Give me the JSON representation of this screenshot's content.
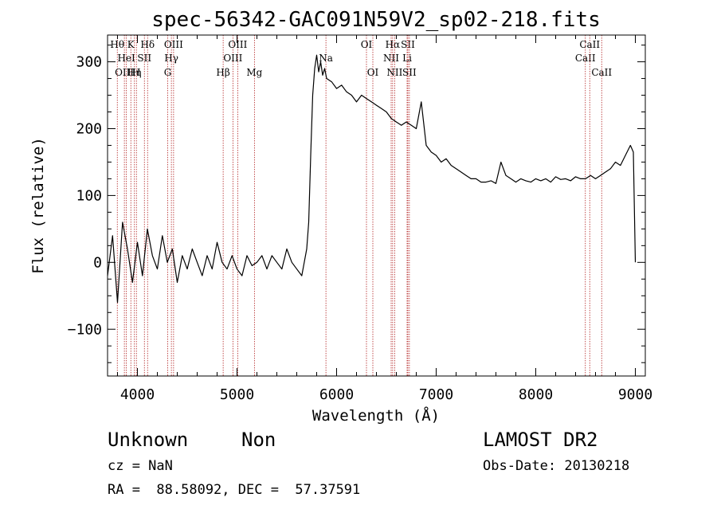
{
  "chart_data": {
    "type": "line",
    "title": "spec-56342-GAC091N59V2_sp02-218.fits",
    "xlabel": "Wavelength (Å)",
    "ylabel": "Flux (relative)",
    "xlim": [
      3700,
      9100
    ],
    "ylim": [
      -170,
      340
    ],
    "xticks": [
      4000,
      5000,
      6000,
      7000,
      8000,
      9000
    ],
    "yticks": [
      -100,
      0,
      100,
      200,
      300
    ],
    "xtick_labels": [
      "4000",
      "5000",
      "6000",
      "7000",
      "8000",
      "9000"
    ],
    "ytick_labels": [
      "−100",
      "0",
      "100",
      "200",
      "300"
    ],
    "series": [
      {
        "color": "#000000",
        "x": [
          3700,
          3750,
          3800,
          3850,
          3900,
          3950,
          4000,
          4050,
          4100,
          4150,
          4200,
          4250,
          4300,
          4350,
          4400,
          4450,
          4500,
          4550,
          4600,
          4650,
          4700,
          4750,
          4800,
          4850,
          4900,
          4950,
          5000,
          5050,
          5100,
          5150,
          5200,
          5250,
          5300,
          5350,
          5400,
          5450,
          5500,
          5550,
          5600,
          5650,
          5700,
          5720,
          5740,
          5760,
          5780,
          5800,
          5820,
          5840,
          5860,
          5880,
          5900,
          5950,
          6000,
          6050,
          6100,
          6150,
          6200,
          6250,
          6300,
          6350,
          6400,
          6450,
          6500,
          6550,
          6600,
          6650,
          6700,
          6750,
          6800,
          6850,
          6900,
          6950,
          7000,
          7050,
          7100,
          7150,
          7200,
          7250,
          7300,
          7350,
          7400,
          7450,
          7500,
          7550,
          7600,
          7650,
          7700,
          7750,
          7800,
          7850,
          7900,
          7950,
          8000,
          8050,
          8100,
          8150,
          8200,
          8250,
          8300,
          8350,
          8400,
          8450,
          8500,
          8550,
          8600,
          8650,
          8700,
          8750,
          8800,
          8850,
          8900,
          8950,
          8980,
          9000
        ],
        "y": [
          -20,
          40,
          -60,
          60,
          20,
          -30,
          30,
          -20,
          50,
          10,
          -10,
          40,
          0,
          20,
          -30,
          10,
          -10,
          20,
          0,
          -20,
          10,
          -10,
          30,
          0,
          -10,
          10,
          -10,
          -20,
          10,
          -5,
          0,
          10,
          -10,
          10,
          0,
          -10,
          20,
          0,
          -10,
          -20,
          20,
          60,
          160,
          250,
          290,
          310,
          285,
          300,
          280,
          290,
          275,
          270,
          260,
          265,
          255,
          250,
          240,
          250,
          245,
          240,
          235,
          230,
          225,
          215,
          210,
          205,
          210,
          205,
          200,
          240,
          175,
          165,
          160,
          150,
          155,
          145,
          140,
          135,
          130,
          125,
          125,
          120,
          120,
          122,
          118,
          150,
          130,
          125,
          120,
          125,
          122,
          120,
          125,
          122,
          125,
          120,
          128,
          124,
          125,
          122,
          128,
          125,
          125,
          130,
          125,
          130,
          135,
          140,
          150,
          145,
          160,
          175,
          165,
          0
        ]
      }
    ],
    "emission_lines": [
      {
        "label": "Hθ",
        "x": 3798,
        "row": 0
      },
      {
        "label": "OIII",
        "x": 3869,
        "row": 2
      },
      {
        "label": "HeI",
        "x": 3889,
        "row": 1
      },
      {
        "label": "K",
        "x": 3934,
        "row": 0
      },
      {
        "label": "Hη",
        "x": 3970,
        "row": 2
      },
      {
        "label": "SII",
        "x": 4070,
        "row": 1
      },
      {
        "label": "H",
        "x": 3990,
        "row": 2
      },
      {
        "label": "Hδ",
        "x": 4102,
        "row": 0
      },
      {
        "label": "G",
        "x": 4304,
        "row": 2
      },
      {
        "label": "Hγ",
        "x": 4341,
        "row": 1
      },
      {
        "label": "OIII",
        "x": 4363,
        "row": 0
      },
      {
        "label": "Hβ",
        "x": 4861,
        "row": 2
      },
      {
        "label": "OIII",
        "x": 4959,
        "row": 1
      },
      {
        "label": "OIII",
        "x": 5007,
        "row": 0
      },
      {
        "label": "Mg",
        "x": 5175,
        "row": 2
      },
      {
        "label": "Na",
        "x": 5893,
        "row": 1
      },
      {
        "label": "OI",
        "x": 6300,
        "row": 0
      },
      {
        "label": "OI",
        "x": 6364,
        "row": 2
      },
      {
        "label": "NII",
        "x": 6548,
        "row": 1
      },
      {
        "label": "Hα",
        "x": 6563,
        "row": 0
      },
      {
        "label": "NII",
        "x": 6583,
        "row": 2
      },
      {
        "label": "Li",
        "x": 6708,
        "row": 1
      },
      {
        "label": "SII",
        "x": 6716,
        "row": 0
      },
      {
        "label": "SII",
        "x": 6731,
        "row": 2
      },
      {
        "label": "CaII",
        "x": 8498,
        "row": 1
      },
      {
        "label": "CaII",
        "x": 8542,
        "row": 0
      },
      {
        "label": "CaII",
        "x": 8662,
        "row": 2
      }
    ]
  },
  "info": {
    "class": "Unknown",
    "subclass": "Non",
    "survey": "LAMOST DR2",
    "cz": "cz = NaN",
    "obs_date": "Obs-Date: 20130218",
    "coords": "RA =  88.58092, DEC =  57.37591"
  }
}
